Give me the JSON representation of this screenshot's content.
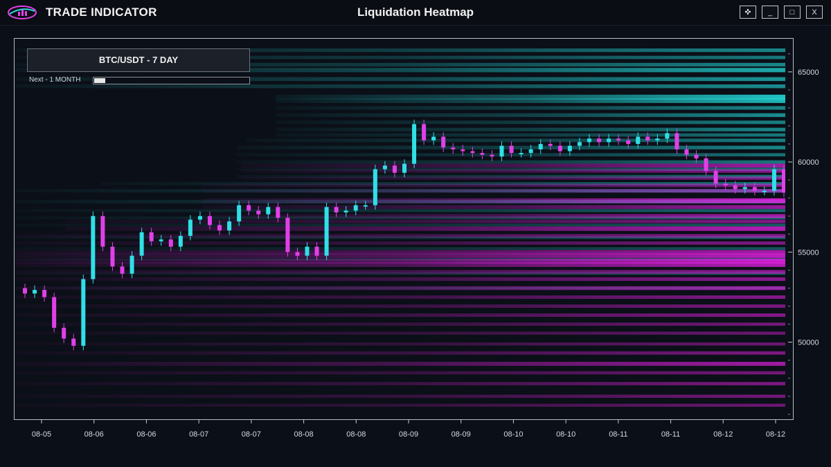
{
  "app": {
    "title": "TRADE INDICATOR",
    "window_title": "Liquidation Heatmap"
  },
  "window_buttons": {
    "move": "✜",
    "minimize": "_",
    "maximize": "□",
    "close": "X"
  },
  "panel": {
    "symbol_label": "BTC/USDT - 7 DAY",
    "next_label": "Next - 1 MONTH",
    "progress_fraction": 0.07
  },
  "colors": {
    "background": "#0b0f17",
    "long_liquidations": "#22d6d6",
    "short_liquidations": "#e020e0",
    "candle_up": "#2fe0e6",
    "candle_down": "#e040e8"
  },
  "chart_data": {
    "type": "heatmap",
    "title": "Liquidation Heatmap",
    "xlabel": "",
    "ylabel": "",
    "x_tick_labels": [
      "08-05",
      "08-06",
      "08-06",
      "08-07",
      "08-07",
      "08-08",
      "08-08",
      "08-09",
      "08-09",
      "08-10",
      "08-10",
      "08-11",
      "08-11",
      "08-12",
      "08-12"
    ],
    "y_ticks": [
      50000,
      55000,
      60000,
      65000
    ],
    "y_tick_labels": [
      "50000",
      "55000",
      "60000",
      "65000"
    ],
    "ylim": [
      45800,
      66800
    ],
    "price_series": {
      "type": "candlestick",
      "close": [
        52700,
        52900,
        52500,
        50800,
        50200,
        49800,
        53500,
        57000,
        55300,
        54200,
        53800,
        54800,
        56100,
        55600,
        55700,
        55300,
        55900,
        56800,
        57000,
        56500,
        56200,
        56700,
        57600,
        57300,
        57100,
        57500,
        56900,
        55000,
        54800,
        55300,
        54800,
        57500,
        57200,
        57300,
        57600,
        57600,
        59600,
        59800,
        59400,
        59900,
        62100,
        61200,
        61400,
        60800,
        60700,
        60600,
        60500,
        60400,
        60300,
        60900,
        60500,
        60500,
        60700,
        61000,
        60900,
        60600,
        60900,
        61100,
        61300,
        61100,
        61300,
        61200,
        61000,
        61400,
        61200,
        61300,
        61600,
        60700,
        60400,
        60200,
        59500,
        58800,
        58700,
        58500,
        58600,
        58400,
        58400,
        59600,
        58300
      ]
    },
    "long_liquidation_bands": [
      {
        "price": 66200,
        "intensity": 0.55
      },
      {
        "price": 65800,
        "intensity": 0.45
      },
      {
        "price": 65400,
        "intensity": 0.55
      },
      {
        "price": 65100,
        "intensity": 0.8
      },
      {
        "price": 64600,
        "intensity": 0.65
      },
      {
        "price": 64200,
        "intensity": 0.6
      },
      {
        "price": 63600,
        "intensity": 1.0
      },
      {
        "price": 63400,
        "intensity": 0.9
      },
      {
        "price": 63000,
        "intensity": 0.55
      },
      {
        "price": 62600,
        "intensity": 0.6
      },
      {
        "price": 62200,
        "intensity": 0.5
      },
      {
        "price": 61800,
        "intensity": 0.55
      },
      {
        "price": 61500,
        "intensity": 0.45
      },
      {
        "price": 61200,
        "intensity": 0.5
      },
      {
        "price": 60800,
        "intensity": 0.55
      },
      {
        "price": 60400,
        "intensity": 0.4
      },
      {
        "price": 60000,
        "intensity": 0.45
      },
      {
        "price": 59600,
        "intensity": 0.35
      },
      {
        "price": 59200,
        "intensity": 0.4
      },
      {
        "price": 58800,
        "intensity": 0.4
      },
      {
        "price": 58400,
        "intensity": 0.45
      },
      {
        "price": 57800,
        "intensity": 0.55
      },
      {
        "price": 57300,
        "intensity": 0.35
      },
      {
        "price": 56900,
        "intensity": 0.3
      },
      {
        "price": 56500,
        "intensity": 0.25
      },
      {
        "price": 55800,
        "intensity": 0.25
      },
      {
        "price": 55200,
        "intensity": 0.2
      },
      {
        "price": 54600,
        "intensity": 0.2
      },
      {
        "price": 53800,
        "intensity": 0.15
      },
      {
        "price": 53000,
        "intensity": 0.15
      }
    ],
    "short_liquidation_bands": [
      {
        "price": 59800,
        "intensity": 0.7
      },
      {
        "price": 59500,
        "intensity": 0.55
      },
      {
        "price": 59100,
        "intensity": 0.45
      },
      {
        "price": 58700,
        "intensity": 0.5
      },
      {
        "price": 58400,
        "intensity": 0.55
      },
      {
        "price": 57850,
        "intensity": 1.0
      },
      {
        "price": 57500,
        "intensity": 0.65
      },
      {
        "price": 57000,
        "intensity": 0.7
      },
      {
        "price": 56700,
        "intensity": 0.5
      },
      {
        "price": 56300,
        "intensity": 0.85
      },
      {
        "price": 55900,
        "intensity": 0.55
      },
      {
        "price": 55500,
        "intensity": 0.45
      },
      {
        "price": 55000,
        "intensity": 0.75
      },
      {
        "price": 54800,
        "intensity": 0.9
      },
      {
        "price": 54500,
        "intensity": 1.0
      },
      {
        "price": 54300,
        "intensity": 0.85
      },
      {
        "price": 53900,
        "intensity": 0.6
      },
      {
        "price": 53500,
        "intensity": 0.55
      },
      {
        "price": 53000,
        "intensity": 0.65
      },
      {
        "price": 52500,
        "intensity": 0.5
      },
      {
        "price": 52000,
        "intensity": 0.45
      },
      {
        "price": 51500,
        "intensity": 0.5
      },
      {
        "price": 51000,
        "intensity": 0.4
      },
      {
        "price": 50500,
        "intensity": 0.35
      },
      {
        "price": 49900,
        "intensity": 0.35
      },
      {
        "price": 49400,
        "intensity": 0.45
      },
      {
        "price": 48800,
        "intensity": 0.7
      },
      {
        "price": 48300,
        "intensity": 0.4
      },
      {
        "price": 47700,
        "intensity": 0.45
      },
      {
        "price": 47000,
        "intensity": 0.4
      },
      {
        "price": 46500,
        "intensity": 0.35
      }
    ],
    "grid": false,
    "legend": "none"
  }
}
